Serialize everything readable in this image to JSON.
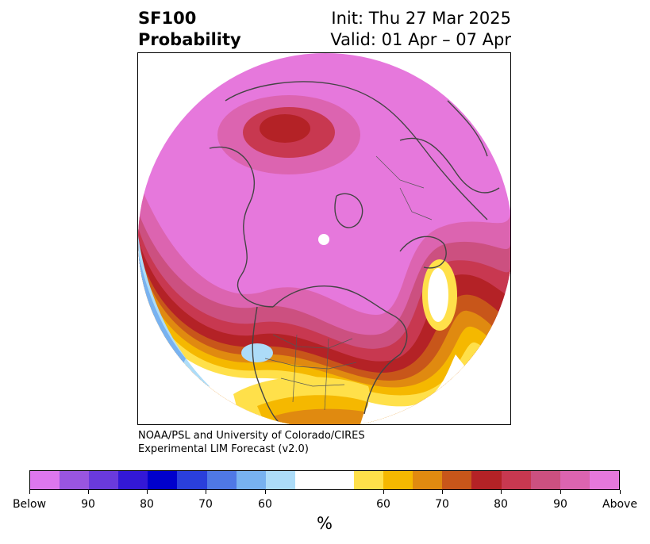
{
  "header": {
    "title_line1": "SF100",
    "title_line2": "Probability",
    "init": "Init: Thu 27 Mar 2025",
    "valid": "Valid: 01 Apr – 07 Apr"
  },
  "credits": {
    "line1": "NOAA/PSL and University of Colorado/CIRES",
    "line2": "Experimental LIM Forecast (v2.0)"
  },
  "colorbar": {
    "colors": [
      "#dd77ee",
      "#9955e0",
      "#6a3adc",
      "#3318d6",
      "#0000cc",
      "#2a3fdc",
      "#4f78e6",
      "#78b2f0",
      "#addcf8",
      "#ffffff",
      "#ffffff",
      "#ffe04a",
      "#f5b800",
      "#e08a10",
      "#c8561a",
      "#b42226",
      "#c83850",
      "#cc5080",
      "#dc64b0",
      "#e678dc"
    ],
    "tick_labels": [
      "Below",
      "90",
      "80",
      "70",
      "60",
      "60",
      "70",
      "80",
      "90",
      "Above"
    ],
    "unit": "%"
  },
  "map": {
    "land_fill": "#e678dc"
  }
}
